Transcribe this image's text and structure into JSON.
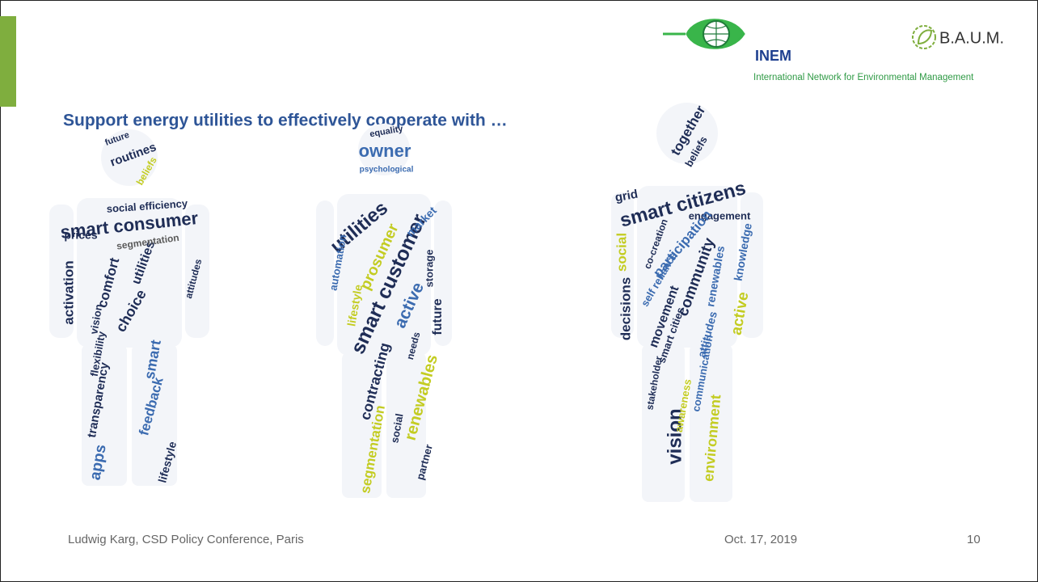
{
  "header": {
    "title": "Support energy utilities to effectively cooperate with …"
  },
  "logos": {
    "inem_name": "INEM",
    "inem_tagline": "International Network for Environmental Management",
    "baum": "B.A.U.M."
  },
  "figures": [
    {
      "words": [
        "routines",
        "future",
        "beliefs",
        "smart consumer",
        "social efficiency",
        "prices",
        "activation",
        "utilities",
        "comfort",
        "segmentation",
        "choice",
        "vision",
        "attitudes",
        "smart",
        "feedback",
        "transparency",
        "apps",
        "lifestyle",
        "flexibility"
      ]
    },
    {
      "words": [
        "owner",
        "equality",
        "psychological",
        "utilities",
        "smart customer",
        "prosumer",
        "active",
        "automation",
        "market",
        "storage",
        "future",
        "contracting",
        "renewables",
        "segmentation",
        "partner",
        "social",
        "lifestyle",
        "needs"
      ]
    },
    {
      "words": [
        "together",
        "beliefs",
        "smart citizens",
        "grid",
        "engagement",
        "participation",
        "community",
        "knowledge",
        "social",
        "decisions",
        "renewables",
        "active",
        "self reliance",
        "movement",
        "smart cities",
        "attitudes",
        "communication",
        "stakeholder",
        "environment",
        "vision",
        "awareness",
        "co-creation"
      ]
    }
  ],
  "footer": {
    "author": "Ludwig Karg, CSD Policy Conference, Paris",
    "date": "Oct. 17, 2019",
    "page": "10"
  }
}
